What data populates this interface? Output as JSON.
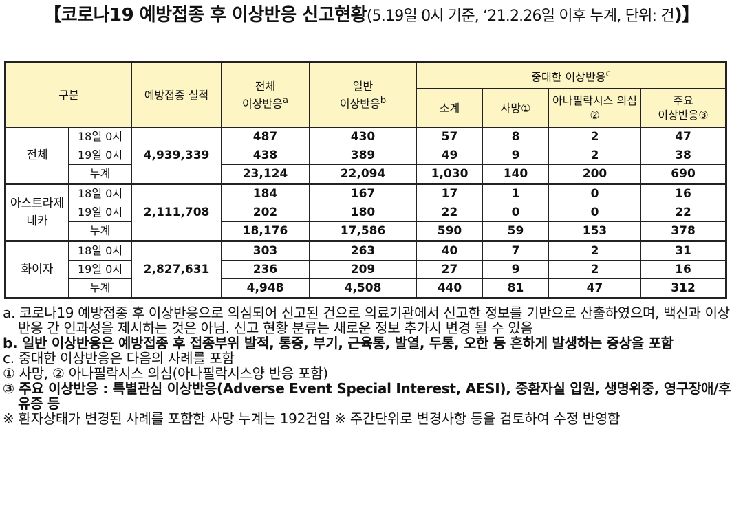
{
  "title": {
    "main": "【코로나19 예방접종 후 이상반응 신고현황",
    "sub": "(5.19일 0시 기준, ‘21.2.26일 이후 누계, 단위: 건",
    "end": ")】"
  },
  "table": {
    "headers": {
      "category": "구분",
      "vaccinated": "예방접종 실적",
      "total_line1": "전체",
      "total_line2": "이상반응",
      "total_sup": "a",
      "general_line1": "일반",
      "general_line2": "이상반응",
      "general_sup": "b",
      "serious": "중대한 이상반응",
      "serious_sup": "c",
      "subtotal": "소계",
      "death": "사망①",
      "anaphylaxis": "아나필락시스 의심②",
      "major_line1": "주요",
      "major_line2": "이상반응③"
    },
    "groups": [
      {
        "name": "전체",
        "vaccinated": "4,939,339",
        "rows": [
          {
            "time": "18일 0시",
            "total": "487",
            "general": "430",
            "subtotal": "57",
            "death": "8",
            "anaphylaxis": "2",
            "major": "47"
          },
          {
            "time": "19일 0시",
            "total": "438",
            "general": "389",
            "subtotal": "49",
            "death": "9",
            "anaphylaxis": "2",
            "major": "38"
          },
          {
            "time": "누계",
            "total": "23,124",
            "general": "22,094",
            "subtotal": "1,030",
            "death": "140",
            "anaphylaxis": "200",
            "major": "690"
          }
        ]
      },
      {
        "name": "아스트라제네카",
        "vaccinated": "2,111,708",
        "rows": [
          {
            "time": "18일 0시",
            "total": "184",
            "general": "167",
            "subtotal": "17",
            "death": "1",
            "anaphylaxis": "0",
            "major": "16"
          },
          {
            "time": "19일 0시",
            "total": "202",
            "general": "180",
            "subtotal": "22",
            "death": "0",
            "anaphylaxis": "0",
            "major": "22"
          },
          {
            "time": "누계",
            "total": "18,176",
            "general": "17,586",
            "subtotal": "590",
            "death": "59",
            "anaphylaxis": "153",
            "major": "378"
          }
        ]
      },
      {
        "name": "화이자",
        "vaccinated": "2,827,631",
        "rows": [
          {
            "time": "18일 0시",
            "total": "303",
            "general": "263",
            "subtotal": "40",
            "death": "7",
            "anaphylaxis": "2",
            "major": "31"
          },
          {
            "time": "19일 0시",
            "total": "236",
            "general": "209",
            "subtotal": "27",
            "death": "9",
            "anaphylaxis": "2",
            "major": "16"
          },
          {
            "time": "누계",
            "total": "4,948",
            "general": "4,508",
            "subtotal": "440",
            "death": "81",
            "anaphylaxis": "47",
            "major": "312"
          }
        ]
      }
    ]
  },
  "notes": {
    "a": "a. 코로나19 예방접종 후 이상반응으로 의심되어 신고된 건으로 의료기관에서 신고한 정보를 기반으로 산출하였으며, 백신과 이상반응 간 인과성을 제시하는 것은 아님. 신고 현황 분류는 새로운 정보 추가시 변경 될 수 있음",
    "b": "b. 일반 이상반응은 예방접종 후 접종부위 발적, 통증, 부기, 근육통, 발열, 두통, 오한 등 흔하게 발생하는 증상을 포함",
    "c": "c. 중대한 이상반응은 다음의 사례를 포함",
    "c1": "① 사망, ② 아나필락시스 의심(아나필락시스양 반응 포함)",
    "c3": "③ 주요 이상반응 : 특별관심 이상반응(Adverse Event Special Interest, AESI), 중환자실 입원, 생명위중, 영구장애/후유증 등",
    "ref": "※ 환자상태가 변경된 사례를 포함한 사망 누계는 192건임   ※ 주간단위로 변경사항 등을 검토하여 수정 반영함"
  }
}
